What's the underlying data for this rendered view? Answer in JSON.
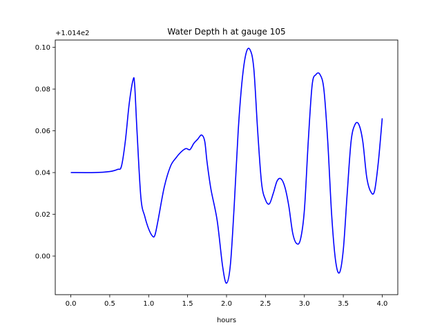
{
  "chart_data": {
    "type": "line",
    "title": "Water Depth h at gauge 105",
    "xlabel": "hours",
    "ylabel": "",
    "y_offset_label": "+1.014e2",
    "xlim": [
      -0.2,
      4.2
    ],
    "ylim": [
      -0.0185,
      0.1035
    ],
    "x_ticks": [
      0.0,
      0.5,
      1.0,
      1.5,
      2.0,
      2.5,
      3.0,
      3.5,
      4.0
    ],
    "x_tick_labels": [
      "0.0",
      "0.5",
      "1.0",
      "1.5",
      "2.0",
      "2.5",
      "3.0",
      "3.5",
      "4.0"
    ],
    "y_ticks": [
      0.0,
      0.02,
      0.04,
      0.06,
      0.08,
      0.1
    ],
    "y_tick_labels": [
      "0.00",
      "0.02",
      "0.04",
      "0.06",
      "0.08",
      "0.10"
    ],
    "grid": false,
    "line_color": "#0000ff",
    "series": [
      {
        "x": [
          0.0,
          0.3,
          0.5,
          0.6,
          0.65,
          0.7,
          0.75,
          0.8,
          0.82,
          0.85,
          0.9,
          0.95,
          1.0,
          1.05,
          1.08,
          1.12,
          1.2,
          1.28,
          1.35,
          1.42,
          1.48,
          1.53,
          1.58,
          1.63,
          1.68,
          1.72,
          1.75,
          1.8,
          1.88,
          1.95,
          2.0,
          2.05,
          2.1,
          2.15,
          2.2,
          2.25,
          2.3,
          2.35,
          2.4,
          2.45,
          2.5,
          2.55,
          2.6,
          2.65,
          2.7,
          2.75,
          2.8,
          2.85,
          2.9,
          2.95,
          3.0,
          3.05,
          3.1,
          3.15,
          3.2,
          3.25,
          3.3,
          3.35,
          3.4,
          3.45,
          3.5,
          3.55,
          3.6,
          3.65,
          3.7,
          3.75,
          3.8,
          3.85,
          3.9,
          3.95,
          4.0
        ],
        "y": [
          0.04,
          0.04,
          0.0405,
          0.0415,
          0.043,
          0.055,
          0.073,
          0.0845,
          0.082,
          0.06,
          0.028,
          0.019,
          0.013,
          0.0095,
          0.01,
          0.017,
          0.033,
          0.043,
          0.047,
          0.05,
          0.0515,
          0.051,
          0.054,
          0.056,
          0.058,
          0.055,
          0.045,
          0.032,
          0.017,
          -0.005,
          -0.013,
          -0.004,
          0.025,
          0.06,
          0.084,
          0.097,
          0.099,
          0.09,
          0.06,
          0.035,
          0.027,
          0.025,
          0.03,
          0.036,
          0.037,
          0.033,
          0.024,
          0.011,
          0.006,
          0.008,
          0.022,
          0.055,
          0.082,
          0.087,
          0.087,
          0.08,
          0.055,
          0.02,
          -0.002,
          -0.008,
          0.003,
          0.03,
          0.055,
          0.063,
          0.063,
          0.055,
          0.038,
          0.031,
          0.031,
          0.045,
          0.066
        ]
      }
    ]
  }
}
